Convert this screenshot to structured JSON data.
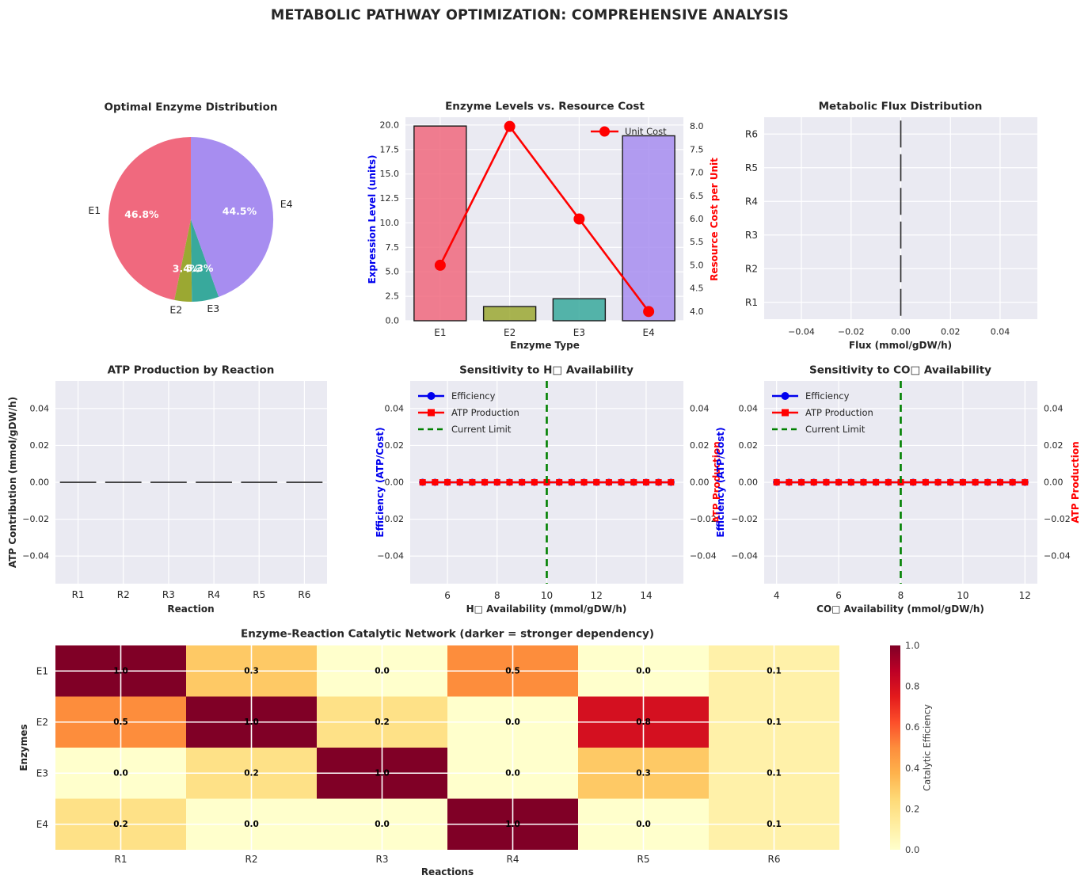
{
  "suptitle": "METABOLIC PATHWAY OPTIMIZATION: COMPREHENSIVE ANALYSIS",
  "style": {
    "axes_background": "#eaeaf2",
    "grid_color": "#ffffff",
    "text_color": "#262626",
    "efficiency_blue": "#0000ee",
    "cost_red": "#ff0000",
    "limit_green": "#008000",
    "bar_edge": "#1a1a1a"
  },
  "chart_data": [
    {
      "type": "pie",
      "title": "Optimal Enzyme Distribution",
      "labels": [
        "E1",
        "E2",
        "E3",
        "E4"
      ],
      "values": [
        46.8,
        3.4,
        5.3,
        44.5
      ],
      "percent_labels": [
        "46.8%",
        "3.4%",
        "5.3%",
        "44.5%"
      ],
      "colors": [
        "#f0697e",
        "#9ba832",
        "#38a99c",
        "#a78df0"
      ],
      "start_angle": 90,
      "counterclockwise": true
    },
    {
      "type": "bar+line",
      "title": "Enzyme Levels vs. Resource Cost",
      "xlabel": "Enzyme Type",
      "ylabel_left": "Expression Level (units)",
      "ylabel_right": "Resource Cost per Unit",
      "categories": [
        "E1",
        "E2",
        "E3",
        "E4"
      ],
      "bar_values": [
        19.9,
        1.45,
        2.25,
        18.9
      ],
      "bar_colors": [
        "#f0697e",
        "#9ba832",
        "#38a99c",
        "#a78df0"
      ],
      "line": {
        "name": "Unit Cost",
        "values": [
          5.0,
          8.0,
          6.0,
          4.0
        ],
        "color": "#ff0000"
      },
      "ylim_left": [
        0,
        20.8
      ],
      "yticks_left": [
        0,
        2.5,
        5,
        7.5,
        10,
        12.5,
        15,
        17.5,
        20
      ],
      "ylim_right": [
        3.8,
        8.2
      ],
      "yticks_right": [
        4,
        4.5,
        5,
        5.5,
        6,
        6.5,
        7,
        7.5,
        8
      ]
    },
    {
      "type": "barh",
      "title": "Metabolic Flux Distribution",
      "xlabel": "Flux (mmol/gDW/h)",
      "categories": [
        "R1",
        "R2",
        "R3",
        "R4",
        "R5",
        "R6"
      ],
      "values": [
        0,
        0,
        0,
        0,
        0,
        0
      ],
      "xlim": [
        -0.055,
        0.055
      ],
      "xticks": [
        -0.04,
        -0.02,
        0.0,
        0.02,
        0.04
      ]
    },
    {
      "type": "bar",
      "title": "ATP Production by Reaction",
      "xlabel": "Reaction",
      "ylabel": "ATP Contribution (mmol/gDW/h)",
      "categories": [
        "R1",
        "R2",
        "R3",
        "R4",
        "R5",
        "R6"
      ],
      "values": [
        0,
        0,
        0,
        0,
        0,
        0
      ],
      "ylim": [
        -0.055,
        0.055
      ],
      "yticks": [
        0.04,
        0.02,
        0.0,
        -0.02,
        -0.04
      ]
    },
    {
      "type": "line",
      "title": "Sensitivity to H□ Availability",
      "xlabel": "H□ Availability (mmol/gDW/h)",
      "ylabel_left": "Efficiency (ATP/Cost)",
      "ylabel_right": "ATP Production",
      "x_start": 5,
      "x_end": 15,
      "x_step": 0.5,
      "series": [
        {
          "name": "Efficiency",
          "color": "#0000ee",
          "marker": "circle",
          "y_const": 0
        },
        {
          "name": "ATP Production",
          "color": "#ff0000",
          "marker": "square",
          "y_const": 0
        }
      ],
      "vline": {
        "name": "Current Limit",
        "x": 10,
        "color": "#008000",
        "style": "dashed"
      },
      "xlim": [
        4.5,
        15.5
      ],
      "xticks": [
        6,
        8,
        10,
        12,
        14
      ],
      "ylim": [
        -0.055,
        0.055
      ],
      "yticks": [
        0.04,
        0.02,
        0.0,
        -0.02,
        -0.04
      ]
    },
    {
      "type": "line",
      "title": "Sensitivity to CO□ Availability",
      "xlabel": "CO□ Availability (mmol/gDW/h)",
      "ylabel_left": "Efficiency (ATP/Cost)",
      "ylabel_right": "ATP Production",
      "x_start": 4,
      "x_end": 12,
      "x_step": 0.4,
      "series": [
        {
          "name": "Efficiency",
          "color": "#0000ee",
          "marker": "circle",
          "y_const": 0
        },
        {
          "name": "ATP Production",
          "color": "#ff0000",
          "marker": "square",
          "y_const": 0
        }
      ],
      "vline": {
        "name": "Current Limit",
        "x": 8,
        "color": "#008000",
        "style": "dashed"
      },
      "xlim": [
        3.6,
        12.4
      ],
      "xticks": [
        4,
        6,
        8,
        10,
        12
      ],
      "ylim": [
        -0.055,
        0.055
      ],
      "yticks": [
        0.04,
        0.02,
        0.0,
        -0.02,
        -0.04
      ]
    },
    {
      "type": "heatmap",
      "title": "Enzyme-Reaction Catalytic Network (darker = stronger dependency)",
      "xlabel": "Reactions",
      "ylabel": "Enzymes",
      "rows": [
        "E1",
        "E2",
        "E3",
        "E4"
      ],
      "cols": [
        "R1",
        "R2",
        "R3",
        "R4",
        "R5",
        "R6"
      ],
      "values": [
        [
          1.0,
          0.3,
          0.0,
          0.5,
          0.0,
          0.1
        ],
        [
          0.5,
          1.0,
          0.2,
          0.0,
          0.8,
          0.1
        ],
        [
          0.0,
          0.2,
          1.0,
          0.0,
          0.3,
          0.1
        ],
        [
          0.2,
          0.0,
          0.0,
          1.0,
          0.0,
          0.1
        ]
      ],
      "colormap": "YlOrRd",
      "colorbar": {
        "label": "Catalytic Efficiency",
        "ticks": [
          0.0,
          0.2,
          0.4,
          0.6,
          0.8,
          1.0
        ],
        "range": [
          0,
          1
        ]
      }
    }
  ]
}
